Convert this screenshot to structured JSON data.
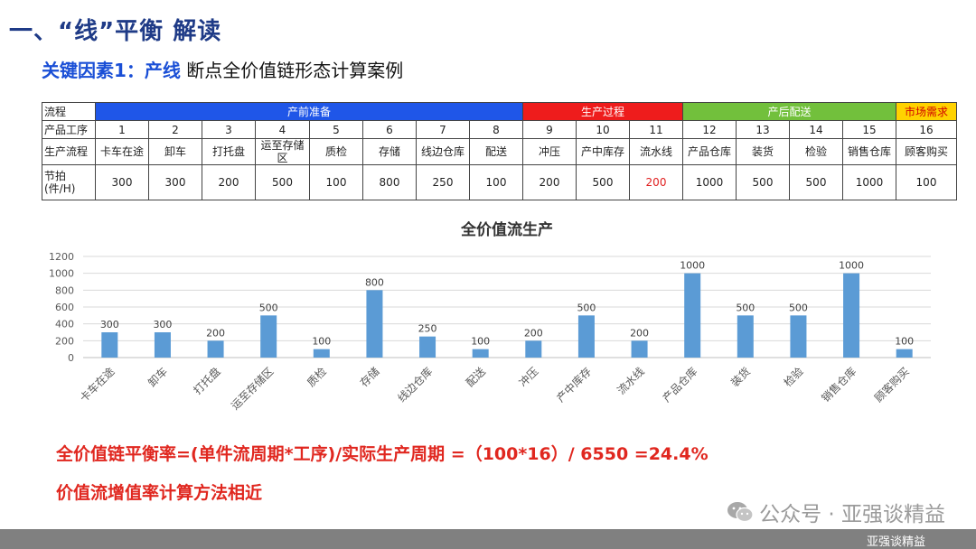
{
  "heading": "一、“线”平衡  解读",
  "subheading": {
    "key": "关键因素1：产线",
    "rest": "断点全价值链形态计算案例"
  },
  "table": {
    "row_labels": [
      "流程",
      "产品工序",
      "生产流程",
      "节拍(件/H)"
    ],
    "phases": [
      {
        "label": "产前准备",
        "span": 8,
        "color": "#1f56e8",
        "text_color": "#ffffff"
      },
      {
        "label": "生产过程",
        "span": 3,
        "color": "#ee1c1c",
        "text_color": "#ffffff"
      },
      {
        "label": "产后配送",
        "span": 4,
        "color": "#72c03c",
        "text_color": "#ffffff"
      },
      {
        "label": "市场需求",
        "span": 1,
        "color": "#ffd200",
        "text_color": "#d00000"
      }
    ],
    "steps": [
      "1",
      "2",
      "3",
      "4",
      "5",
      "6",
      "7",
      "8",
      "9",
      "10",
      "11",
      "12",
      "13",
      "14",
      "15",
      "16"
    ],
    "processes": [
      "卡车在途",
      "卸车",
      "打托盘",
      "运至存储区",
      "质检",
      "存储",
      "线边仓库",
      "配送",
      "冲压",
      "产中库存",
      "流水线",
      "产品仓库",
      "装货",
      "检验",
      "销售仓库",
      "顾客购买"
    ],
    "takts": [
      "300",
      "300",
      "200",
      "500",
      "100",
      "800",
      "250",
      "100",
      "200",
      "500",
      "200",
      "1000",
      "500",
      "500",
      "1000",
      "100"
    ],
    "highlight_color": "#e02020"
  },
  "chart_data": {
    "type": "bar",
    "title": "全价值流生产",
    "categories": [
      "卡车在途",
      "卸车",
      "打托盘",
      "运至存储区",
      "质检",
      "存储",
      "线边仓库",
      "配送",
      "冲压",
      "产中库存",
      "流水线",
      "产品仓库",
      "装货",
      "检验",
      "销售仓库",
      "顾客购买"
    ],
    "values": [
      300,
      300,
      200,
      500,
      100,
      800,
      250,
      100,
      200,
      500,
      200,
      1000,
      500,
      500,
      1000,
      100
    ],
    "ylim": [
      0,
      1200
    ],
    "yticks": [
      "0",
      "200",
      "400",
      "600",
      "800",
      "1000",
      "1200"
    ],
    "grid": true,
    "bar_color": "#5b9bd5"
  },
  "formula": "全价值链平衡率=(单件流周期*工序)/实际生产周期 =（100*16）/ 6550 =24.4%",
  "note": "价值流增值率计算方法相近",
  "watermark": "公众号 · 亚强谈精益",
  "footer": "亚强谈精益"
}
